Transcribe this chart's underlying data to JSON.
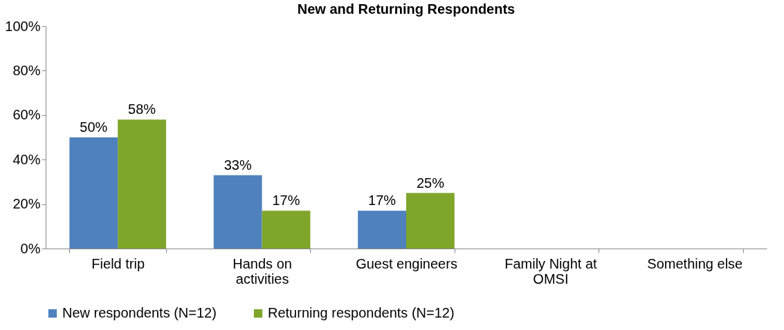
{
  "chart_data": {
    "type": "bar",
    "title": "New and Returning Respondents",
    "categories": [
      "Field trip",
      "Hands on activities",
      "Guest engineers",
      "Family Night at OMSI",
      "Something else"
    ],
    "series": [
      {
        "name": "New respondents (N=12)",
        "color": "#4f81bd",
        "values": [
          50,
          33,
          17,
          null,
          null
        ],
        "value_labels": [
          "50%",
          "33%",
          "17%",
          null,
          null
        ]
      },
      {
        "name": "Returning respondents (N=12)",
        "color": "#7fa52a",
        "values": [
          58,
          17,
          25,
          null,
          null
        ],
        "value_labels": [
          "58%",
          "17%",
          "25%",
          null,
          null
        ]
      }
    ],
    "ylim": [
      0,
      100
    ],
    "yticks": [
      {
        "value": 0,
        "label": "0%"
      },
      {
        "value": 20,
        "label": "20%"
      },
      {
        "value": 40,
        "label": "40%"
      },
      {
        "value": 60,
        "label": "60%"
      },
      {
        "value": 80,
        "label": "80%"
      },
      {
        "value": 100,
        "label": "100%"
      }
    ],
    "legend": "bottom"
  }
}
